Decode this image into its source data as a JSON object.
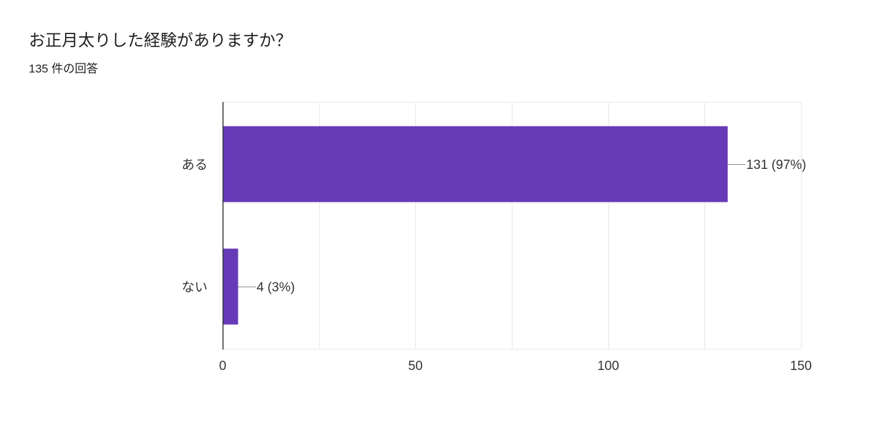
{
  "header": {
    "title": "お正月太りした経験がありますか？",
    "response_count": "135 件の回答"
  },
  "colors": {
    "bar": "#673ab7",
    "gridline": "#e8e8e8",
    "axis": "#333333",
    "text": "#333333"
  },
  "chart_data": {
    "type": "bar",
    "orientation": "horizontal",
    "title": "お正月太りした経験がありますか？",
    "categories": [
      "ある",
      "ない"
    ],
    "values": [
      131,
      4
    ],
    "data_labels": [
      "131 (97%)",
      "4 (3%)"
    ],
    "xlim": [
      0,
      150
    ],
    "x_ticks": [
      0,
      50,
      100,
      150
    ],
    "grid": true,
    "legend": "none"
  }
}
